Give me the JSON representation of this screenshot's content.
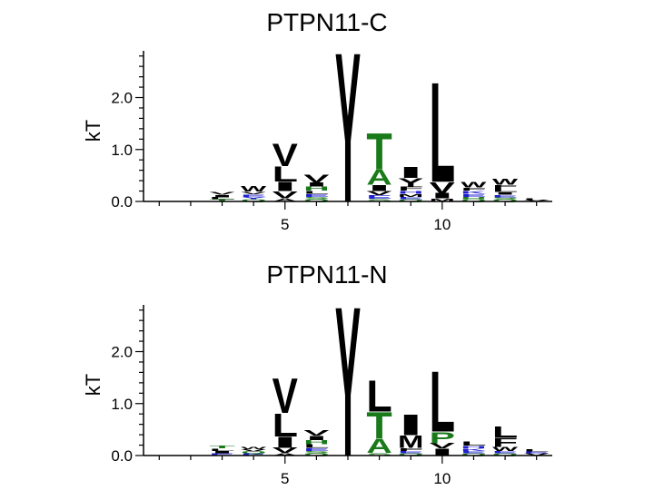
{
  "chart_data": [
    {
      "type": "sequence-logo",
      "title": "PTPN11-C",
      "ylabel": "kT",
      "ylim": [
        0,
        2.9
      ],
      "yticks": [
        0.0,
        1.0,
        2.0
      ],
      "ytick_labels": [
        "0.0",
        "1.0",
        "2.0"
      ],
      "xlim": [
        0.5,
        13.5
      ],
      "xticks": [
        5,
        10
      ],
      "xtick_labels": [
        "5",
        "10"
      ],
      "colors": {
        "black": "#000000",
        "green": "#1a7a1a",
        "blue": "#1f1fd0"
      },
      "positions": [
        {
          "pos": 3,
          "letters": [
            {
              "l": "T",
              "h": 0.04,
              "c": "green"
            },
            {
              "l": "L",
              "h": 0.04,
              "c": "black"
            },
            {
              "l": "I",
              "h": 0.05,
              "c": "black"
            },
            {
              "l": "V",
              "h": 0.06,
              "c": "black"
            }
          ]
        },
        {
          "pos": 4,
          "letters": [
            {
              "l": "Q",
              "h": 0.04,
              "c": "green"
            },
            {
              "l": "Y",
              "h": 0.05,
              "c": "blue"
            },
            {
              "l": "E",
              "h": 0.05,
              "c": "blue"
            },
            {
              "l": "V",
              "h": 0.05,
              "c": "black"
            },
            {
              "l": "W",
              "h": 0.1,
              "c": "black"
            }
          ]
        },
        {
          "pos": 5,
          "letters": [
            {
              "l": "A",
              "h": 0.06,
              "c": "black"
            },
            {
              "l": "V",
              "h": 0.14,
              "c": "black"
            },
            {
              "l": "I",
              "h": 0.18,
              "c": "black"
            },
            {
              "l": "L",
              "h": 0.3,
              "c": "black"
            },
            {
              "l": "V",
              "h": 0.44,
              "c": "black"
            }
          ]
        },
        {
          "pos": 6,
          "letters": [
            {
              "l": "Q",
              "h": 0.04,
              "c": "green"
            },
            {
              "l": "S",
              "h": 0.05,
              "c": "green"
            },
            {
              "l": "E",
              "h": 0.06,
              "c": "blue"
            },
            {
              "l": "L",
              "h": 0.06,
              "c": "black"
            },
            {
              "l": "H",
              "h": 0.08,
              "c": "green"
            },
            {
              "l": "I",
              "h": 0.08,
              "c": "black"
            },
            {
              "l": "V",
              "h": 0.15,
              "c": "black"
            }
          ]
        },
        {
          "pos": 7,
          "letters": [
            {
              "l": "Y",
              "h": 2.95,
              "c": "black"
            }
          ]
        },
        {
          "pos": 8,
          "letters": [
            {
              "l": "S",
              "h": 0.05,
              "c": "green"
            },
            {
              "l": "E",
              "h": 0.07,
              "c": "blue"
            },
            {
              "l": "V",
              "h": 0.08,
              "c": "black"
            },
            {
              "l": "I",
              "h": 0.12,
              "c": "black"
            },
            {
              "l": "A",
              "h": 0.3,
              "c": "green"
            },
            {
              "l": "T",
              "h": 0.72,
              "c": "green"
            }
          ]
        },
        {
          "pos": 9,
          "letters": [
            {
              "l": "Q",
              "h": 0.04,
              "c": "green"
            },
            {
              "l": "E",
              "h": 0.05,
              "c": "blue"
            },
            {
              "l": "M",
              "h": 0.06,
              "c": "black"
            },
            {
              "l": "H",
              "h": 0.06,
              "c": "blue"
            },
            {
              "l": "F",
              "h": 0.08,
              "c": "black"
            },
            {
              "l": "Y",
              "h": 0.16,
              "c": "black"
            },
            {
              "l": "I",
              "h": 0.22,
              "c": "black"
            }
          ]
        },
        {
          "pos": 10,
          "letters": [
            {
              "l": "M",
              "h": 0.06,
              "c": "black"
            },
            {
              "l": "I",
              "h": 0.1,
              "c": "black"
            },
            {
              "l": "V",
              "h": 0.22,
              "c": "black"
            },
            {
              "l": "L",
              "h": 1.97,
              "c": "black"
            }
          ]
        },
        {
          "pos": 11,
          "letters": [
            {
              "l": "Q",
              "h": 0.04,
              "c": "green"
            },
            {
              "l": "H",
              "h": 0.05,
              "c": "green"
            },
            {
              "l": "E",
              "h": 0.06,
              "c": "blue"
            },
            {
              "l": "K",
              "h": 0.06,
              "c": "blue"
            },
            {
              "l": "F",
              "h": 0.06,
              "c": "black"
            },
            {
              "l": "W",
              "h": 0.1,
              "c": "black"
            }
          ]
        },
        {
          "pos": 12,
          "letters": [
            {
              "l": "Q",
              "h": 0.04,
              "c": "green"
            },
            {
              "l": "S",
              "h": 0.04,
              "c": "green"
            },
            {
              "l": "E",
              "h": 0.05,
              "c": "blue"
            },
            {
              "l": "I",
              "h": 0.05,
              "c": "black"
            },
            {
              "l": "L",
              "h": 0.08,
              "c": "black"
            },
            {
              "l": "F",
              "h": 0.06,
              "c": "black"
            },
            {
              "l": "W",
              "h": 0.12,
              "c": "black"
            }
          ]
        },
        {
          "pos": 13,
          "letters": [
            {
              "l": "V",
              "h": 0.03,
              "c": "black"
            },
            {
              "l": "L",
              "h": 0.03,
              "c": "black"
            }
          ]
        }
      ]
    },
    {
      "type": "sequence-logo",
      "title": "PTPN11-N",
      "ylabel": "kT",
      "ylim": [
        0,
        2.9
      ],
      "yticks": [
        0.0,
        1.0,
        2.0
      ],
      "ytick_labels": [
        "0.0",
        "1.0",
        "2.0"
      ],
      "xlim": [
        0.5,
        13.5
      ],
      "xticks": [
        5,
        10
      ],
      "xtick_labels": [
        "5",
        "10"
      ],
      "colors": {
        "black": "#000000",
        "green": "#1a7a1a",
        "blue": "#1f1fd0"
      },
      "positions": [
        {
          "pos": 3,
          "letters": [
            {
              "l": "E",
              "h": 0.04,
              "c": "blue"
            },
            {
              "l": "I",
              "h": 0.05,
              "c": "black"
            },
            {
              "l": "L",
              "h": 0.05,
              "c": "black"
            },
            {
              "l": "T",
              "h": 0.06,
              "c": "green"
            }
          ]
        },
        {
          "pos": 4,
          "letters": [
            {
              "l": "E",
              "h": 0.04,
              "c": "blue"
            },
            {
              "l": "Q",
              "h": 0.04,
              "c": "green"
            },
            {
              "l": "V",
              "h": 0.04,
              "c": "black"
            },
            {
              "l": "W",
              "h": 0.05,
              "c": "black"
            }
          ]
        },
        {
          "pos": 5,
          "letters": [
            {
              "l": "A",
              "h": 0.05,
              "c": "black"
            },
            {
              "l": "V",
              "h": 0.1,
              "c": "black"
            },
            {
              "l": "I",
              "h": 0.22,
              "c": "black"
            },
            {
              "l": "L",
              "h": 0.45,
              "c": "black"
            },
            {
              "l": "V",
              "h": 0.68,
              "c": "black"
            }
          ]
        },
        {
          "pos": 6,
          "letters": [
            {
              "l": "Q",
              "h": 0.04,
              "c": "green"
            },
            {
              "l": "S",
              "h": 0.05,
              "c": "green"
            },
            {
              "l": "E",
              "h": 0.06,
              "c": "blue"
            },
            {
              "l": "L",
              "h": 0.07,
              "c": "black"
            },
            {
              "l": "H",
              "h": 0.08,
              "c": "green"
            },
            {
              "l": "I",
              "h": 0.08,
              "c": "black"
            },
            {
              "l": "V",
              "h": 0.1,
              "c": "black"
            }
          ]
        },
        {
          "pos": 7,
          "letters": [
            {
              "l": "Y",
              "h": 2.95,
              "c": "black"
            }
          ]
        },
        {
          "pos": 8,
          "letters": [
            {
              "l": "S",
              "h": 0.05,
              "c": "green"
            },
            {
              "l": "A",
              "h": 0.28,
              "c": "green"
            },
            {
              "l": "T",
              "h": 0.52,
              "c": "green"
            },
            {
              "l": "L",
              "h": 0.62,
              "c": "black"
            }
          ]
        },
        {
          "pos": 9,
          "letters": [
            {
              "l": "Q",
              "h": 0.04,
              "c": "green"
            },
            {
              "l": "E",
              "h": 0.05,
              "c": "blue"
            },
            {
              "l": "F",
              "h": 0.06,
              "c": "black"
            },
            {
              "l": "M",
              "h": 0.24,
              "c": "black"
            },
            {
              "l": "I",
              "h": 0.4,
              "c": "black"
            }
          ]
        },
        {
          "pos": 10,
          "letters": [
            {
              "l": "I",
              "h": 0.14,
              "c": "black"
            },
            {
              "l": "V",
              "h": 0.1,
              "c": "black"
            },
            {
              "l": "P",
              "h": 0.22,
              "c": "green"
            },
            {
              "l": "L",
              "h": 1.2,
              "c": "black"
            }
          ]
        },
        {
          "pos": 11,
          "letters": [
            {
              "l": "Q",
              "h": 0.04,
              "c": "green"
            },
            {
              "l": "E",
              "h": 0.05,
              "c": "blue"
            },
            {
              "l": "K",
              "h": 0.05,
              "c": "blue"
            },
            {
              "l": "H",
              "h": 0.05,
              "c": "blue"
            },
            {
              "l": "L",
              "h": 0.08,
              "c": "black"
            }
          ]
        },
        {
          "pos": 12,
          "letters": [
            {
              "l": "Q",
              "h": 0.04,
              "c": "green"
            },
            {
              "l": "E",
              "h": 0.05,
              "c": "blue"
            },
            {
              "l": "W",
              "h": 0.08,
              "c": "black"
            },
            {
              "l": "F",
              "h": 0.18,
              "c": "black"
            },
            {
              "l": "L",
              "h": 0.22,
              "c": "black"
            }
          ]
        },
        {
          "pos": 13,
          "letters": [
            {
              "l": "V",
              "h": 0.04,
              "c": "black"
            },
            {
              "l": "E",
              "h": 0.04,
              "c": "blue"
            },
            {
              "l": "L",
              "h": 0.04,
              "c": "black"
            }
          ]
        }
      ]
    }
  ]
}
